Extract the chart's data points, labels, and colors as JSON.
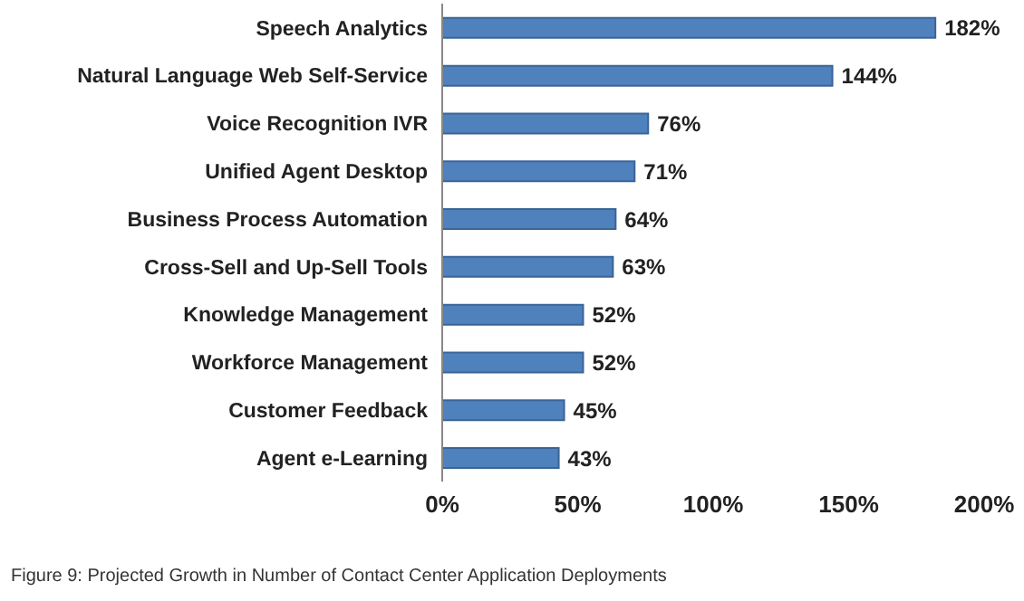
{
  "chart_data": {
    "type": "bar",
    "orientation": "horizontal",
    "categories": [
      "Speech Analytics",
      "Natural Language Web Self-Service",
      "Voice Recognition IVR",
      "Unified Agent Desktop",
      "Business Process Automation",
      "Cross-Sell and Up-Sell Tools",
      "Knowledge Management",
      "Workforce Management",
      "Customer Feedback",
      "Agent e-Learning"
    ],
    "values": [
      182,
      144,
      76,
      71,
      64,
      63,
      52,
      52,
      45,
      43
    ],
    "value_labels": [
      "182%",
      "144%",
      "76%",
      "71%",
      "64%",
      "63%",
      "52%",
      "52%",
      "45%",
      "43%"
    ],
    "color": "#4f81bd",
    "xlim": [
      0,
      200
    ],
    "xticks": [
      {
        "value": 0,
        "label": "0%"
      },
      {
        "value": 50,
        "label": "50%"
      },
      {
        "value": 100,
        "label": "100%"
      },
      {
        "value": 150,
        "label": "150%"
      },
      {
        "value": 200,
        "label": "200%"
      }
    ],
    "grid": false,
    "annotations": [
      "Figure 9:  Projected Growth in Number of Contact Center Application Deployments"
    ]
  }
}
